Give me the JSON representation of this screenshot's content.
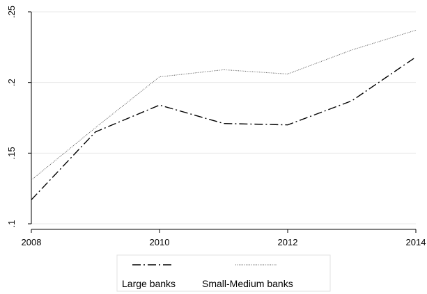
{
  "chart_data": {
    "type": "line",
    "title": "",
    "xlabel": "",
    "ylabel": "",
    "x": [
      2008,
      2009,
      2010,
      2011,
      2012,
      2013,
      2014
    ],
    "xticks": [
      2008,
      2010,
      2012,
      2014
    ],
    "xtick_labels": [
      "2008",
      "2010",
      "2012",
      "2014"
    ],
    "yticks": [
      0.1,
      0.15,
      0.2,
      0.25
    ],
    "ytick_labels": [
      ".1",
      ".15",
      ".2",
      ".25"
    ],
    "xlim": [
      2008,
      2014
    ],
    "ylim": [
      0.1,
      0.25
    ],
    "grid": "horizontal",
    "legend_position": "bottom",
    "series": [
      {
        "name": "Large banks",
        "style": "dash-dot",
        "color": "#000000",
        "values": [
          0.117,
          0.165,
          0.184,
          0.171,
          0.17,
          0.187,
          0.218
        ]
      },
      {
        "name": "Small-Medium banks",
        "style": "dotted",
        "color": "#555555",
        "values": [
          0.131,
          0.168,
          0.204,
          0.209,
          0.206,
          0.223,
          0.237
        ]
      }
    ]
  }
}
